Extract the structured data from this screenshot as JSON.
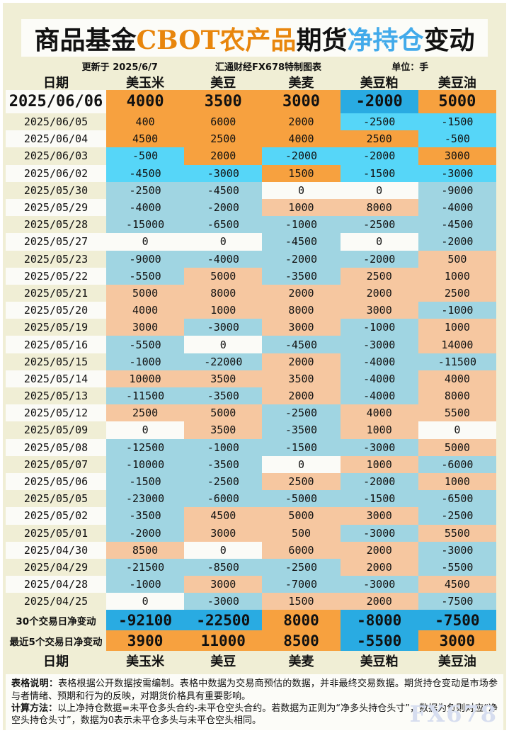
{
  "title": {
    "part1": "商品基金",
    "part2": "CBOT农产品",
    "part3": "期货",
    "part4": "净持仓",
    "part5": "变动"
  },
  "subtitle": {
    "updated": "更新于 2025/6/7",
    "source": "汇通财经FX678特制图表",
    "unit": "单位：手"
  },
  "chart_data": {
    "type": "table",
    "title": "商品基金CBOT农产品期货净持仓变动",
    "columns": [
      "日期",
      "美玉米",
      "美豆",
      "美麦",
      "美豆粕",
      "美豆油"
    ],
    "rows": [
      [
        "2025/06/06",
        4000,
        3500,
        3000,
        -2000,
        5000
      ],
      [
        "2025/06/05",
        400,
        6000,
        2000,
        -2500,
        -1500
      ],
      [
        "2025/06/04",
        4500,
        2500,
        4000,
        2500,
        -500
      ],
      [
        "2025/06/03",
        -500,
        2000,
        -2000,
        -2000,
        3000
      ],
      [
        "2025/06/02",
        -4500,
        -3000,
        1500,
        -1500,
        -3000
      ],
      [
        "2025/05/30",
        -2500,
        -4500,
        0,
        0,
        -9000
      ],
      [
        "2025/05/29",
        -4000,
        -2000,
        1000,
        8000,
        -4000
      ],
      [
        "2025/05/28",
        -15000,
        -6500,
        -1000,
        -2500,
        -4500
      ],
      [
        "2025/05/27",
        0,
        0,
        -4500,
        0,
        -2000
      ],
      [
        "2025/05/23",
        -9000,
        -4000,
        -2000,
        -2000,
        500
      ],
      [
        "2025/05/22",
        -5500,
        5000,
        -3500,
        2500,
        1000
      ],
      [
        "2025/05/21",
        5000,
        8000,
        2000,
        2000,
        2500
      ],
      [
        "2025/05/20",
        4000,
        1000,
        8000,
        3000,
        -1000
      ],
      [
        "2025/05/19",
        3000,
        -3000,
        3000,
        -1000,
        1000
      ],
      [
        "2025/05/16",
        -5500,
        0,
        -4500,
        -3000,
        14000
      ],
      [
        "2025/05/15",
        -1000,
        -22000,
        2000,
        -4000,
        -11500
      ],
      [
        "2025/05/14",
        10000,
        3500,
        3500,
        -4000,
        4000
      ],
      [
        "2025/05/13",
        -11500,
        -3500,
        2000,
        -4000,
        8000
      ],
      [
        "2025/05/12",
        2500,
        5000,
        -2500,
        4000,
        5500
      ],
      [
        "2025/05/09",
        0,
        3500,
        -3500,
        1000,
        0
      ],
      [
        "2025/05/08",
        -12500,
        -1000,
        -1500,
        -3000,
        5000
      ],
      [
        "2025/05/07",
        -10000,
        -3500,
        0,
        1000,
        -6000
      ],
      [
        "2025/05/06",
        -1500,
        -2500,
        2500,
        -2000,
        1000
      ],
      [
        "2025/05/05",
        -23000,
        -6000,
        -5000,
        -1500,
        -6500
      ],
      [
        "2025/05/02",
        -3500,
        4500,
        5000,
        3000,
        -2500
      ],
      [
        "2025/05/01",
        -2000,
        3000,
        500,
        -3000,
        5500
      ],
      [
        "2025/04/30",
        8500,
        0,
        6000,
        2000,
        -3000
      ],
      [
        "2025/04/29",
        -21500,
        -8500,
        -2500,
        2000,
        -5500
      ],
      [
        "2025/04/28",
        -1000,
        3000,
        -7000,
        -3000,
        4500
      ],
      [
        "2025/04/25",
        0,
        -3000,
        1500,
        2000,
        -7500
      ]
    ],
    "summary_rows": [
      [
        "30个交易日净变动",
        -92100,
        -22500,
        8000,
        -8000,
        -7500
      ],
      [
        "最近5个交易日净变动",
        3900,
        11000,
        8500,
        -5500,
        3000
      ]
    ]
  },
  "footer": {
    "note_label": "表格说明：",
    "note_text": "表格根据公开数据按需编制。表格中数据为交易商预估的数据，并非最终交易数据。期货持仓变动是市场参与者情绪、预期和行为的反映，对期货价格具有重要影响。",
    "method_label": "计算方法：",
    "method_text": "以上净持仓数据=未平仓多头合约-未平仓空头合约。若数据为正则为“净多头持仓头寸”，数据为负则对应“净空头持仓头寸”，数据为0表示未平仓多头与未平仓空头相同。",
    "watermark": "FX678"
  },
  "colors": {
    "page_bg": "#F0EED5",
    "panel_white": "#FCFCF8",
    "cell_white": "#FBFBF7",
    "bright_orange": "#F7A13F",
    "bright_cyan": "#56D6F8",
    "deep_blue": "#29ABE2",
    "muted_salmon": "#F6C7A0",
    "muted_blue": "#A0D5E2",
    "title_orange": "#E8860D",
    "title_blue": "#42AAEA",
    "text_black": "#111111",
    "watermark": "#D6DDEF"
  }
}
